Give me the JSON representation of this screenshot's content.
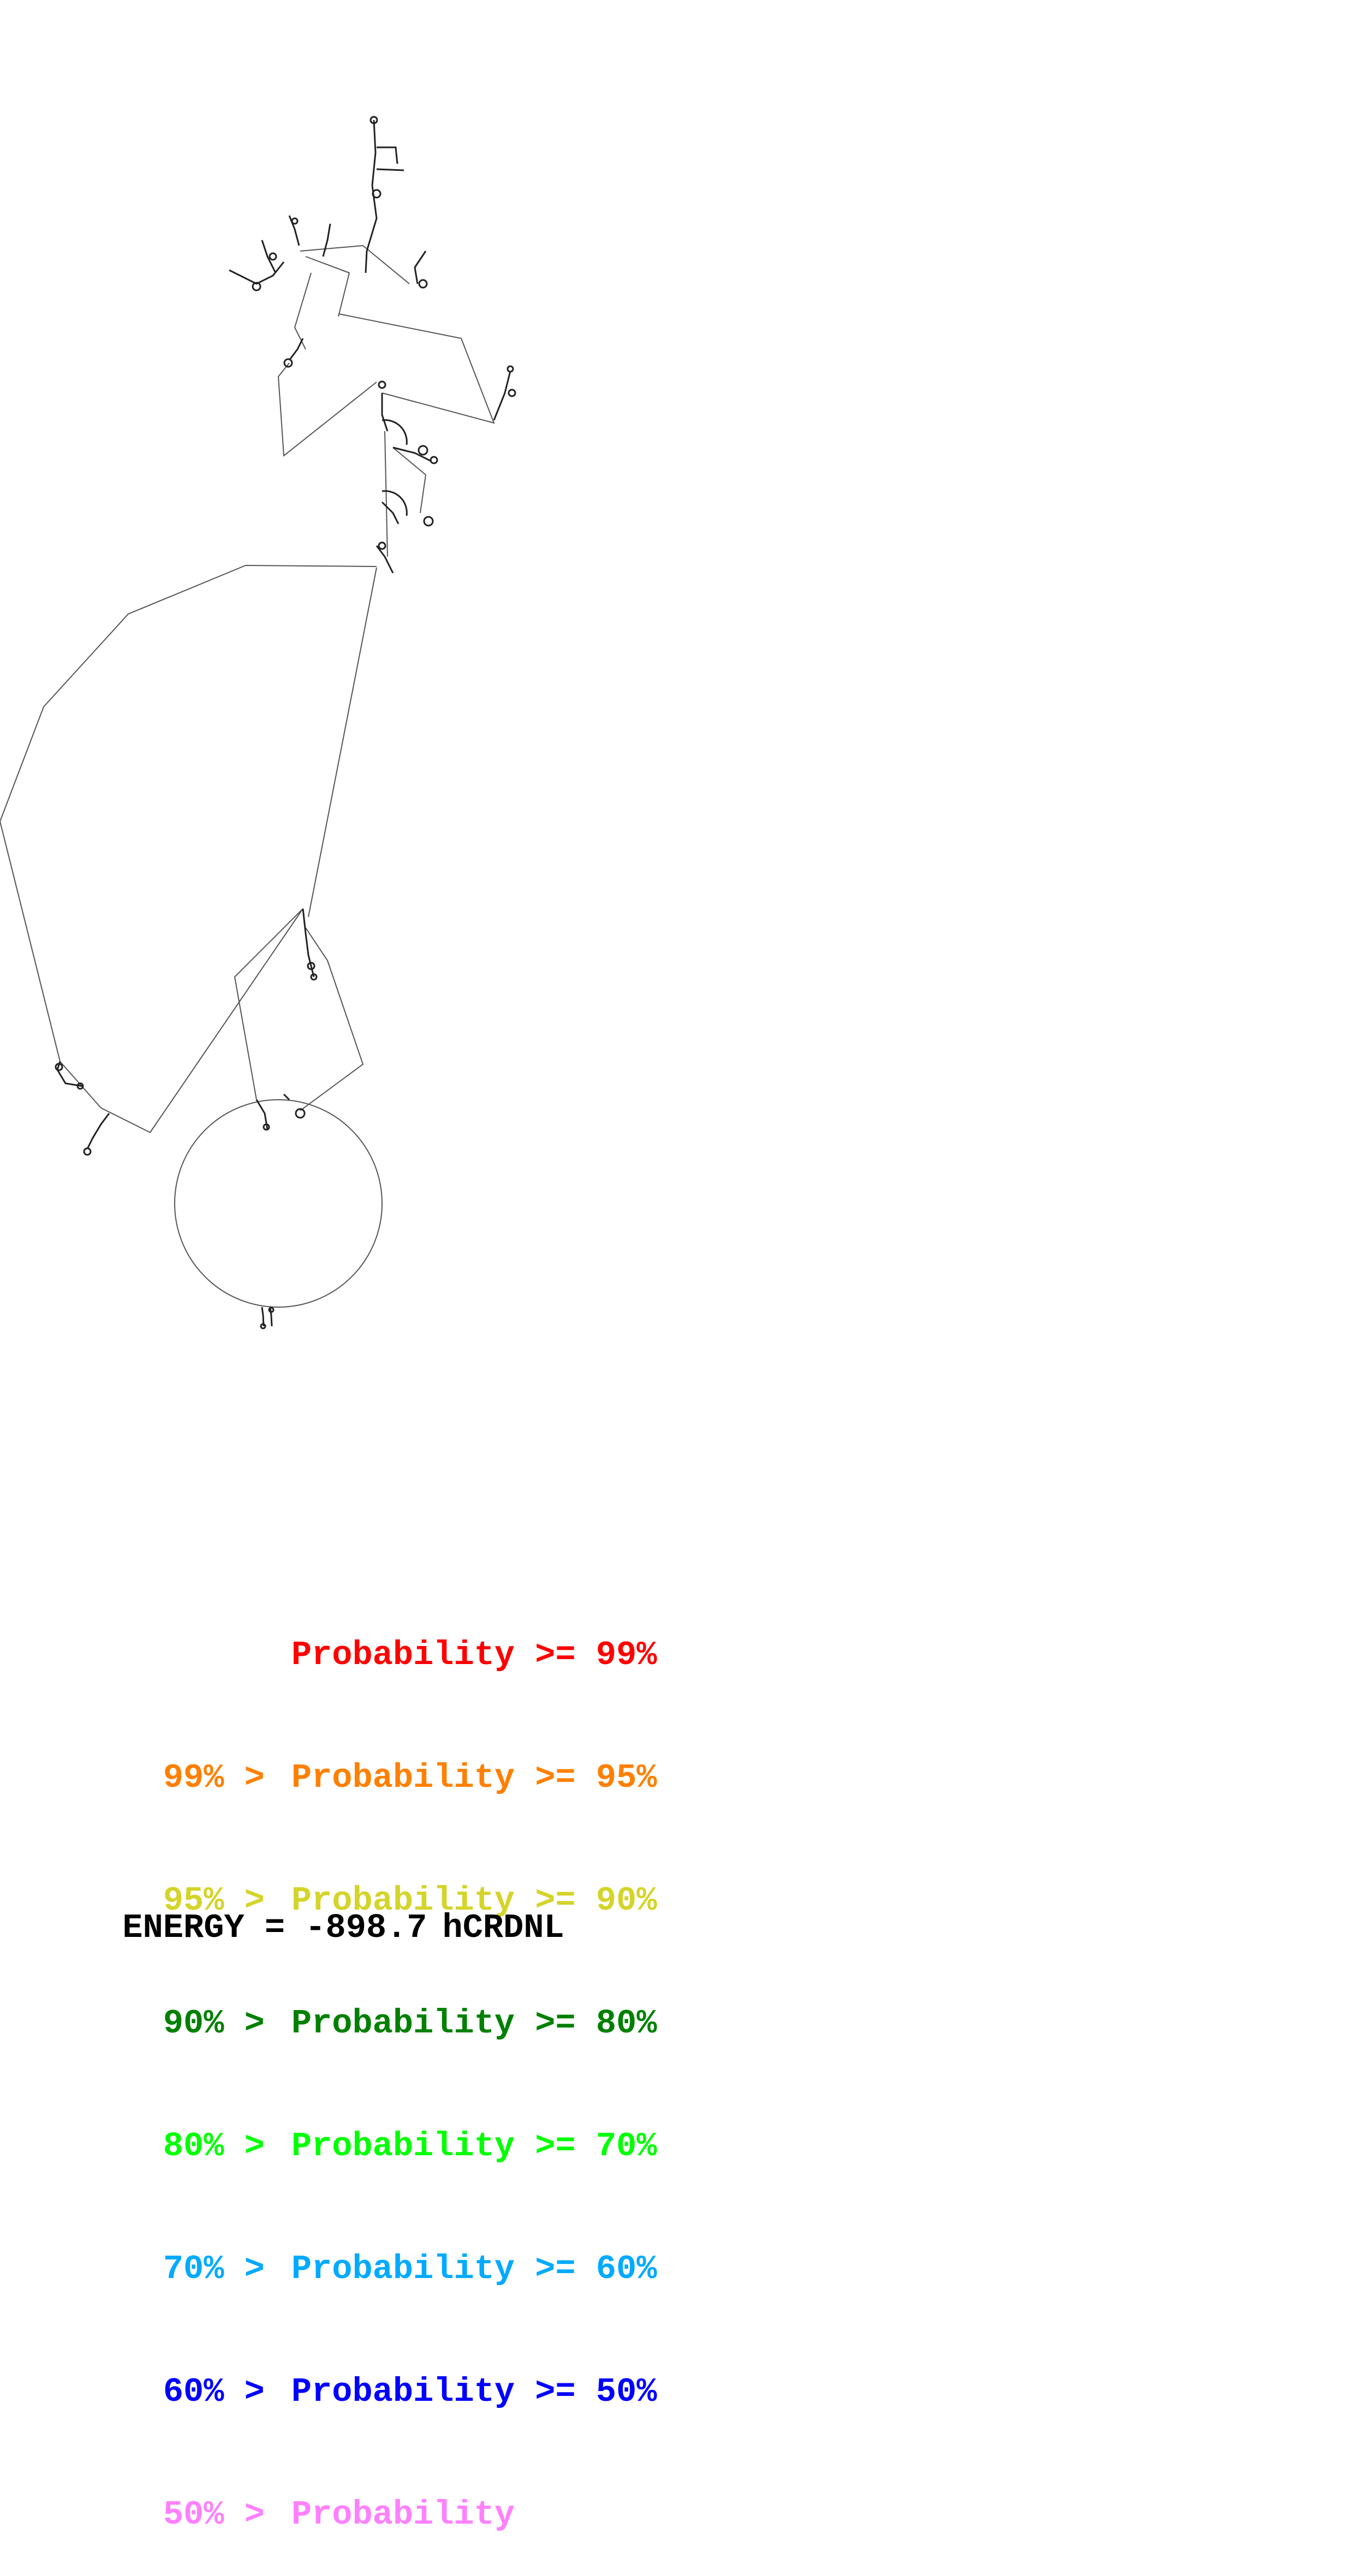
{
  "legend": [
    {
      "prefix": "",
      "label": "Probability >= 99%",
      "color": "#ff0000"
    },
    {
      "prefix": "99% >",
      "label": "Probability >= 95%",
      "color": "#ff8000"
    },
    {
      "prefix": "95% >",
      "label": "Probability >= 90%",
      "color": "#d4d42a"
    },
    {
      "prefix": "90% >",
      "label": "Probability >= 80%",
      "color": "#008000"
    },
    {
      "prefix": "80% >",
      "label": "Probability >= 70%",
      "color": "#00ff00"
    },
    {
      "prefix": "70% >",
      "label": "Probability >= 60%",
      "color": "#00aaff"
    },
    {
      "prefix": "60% >",
      "label": "Probability >= 50%",
      "color": "#0000ff"
    },
    {
      "prefix": "50% >",
      "label": "Probability",
      "color": "#ff80ff"
    }
  ],
  "energy": {
    "label": "ENERGY = -898.7",
    "sequence_name": "hCRDNL"
  },
  "structure": {
    "backbone_color": "#000000"
  }
}
